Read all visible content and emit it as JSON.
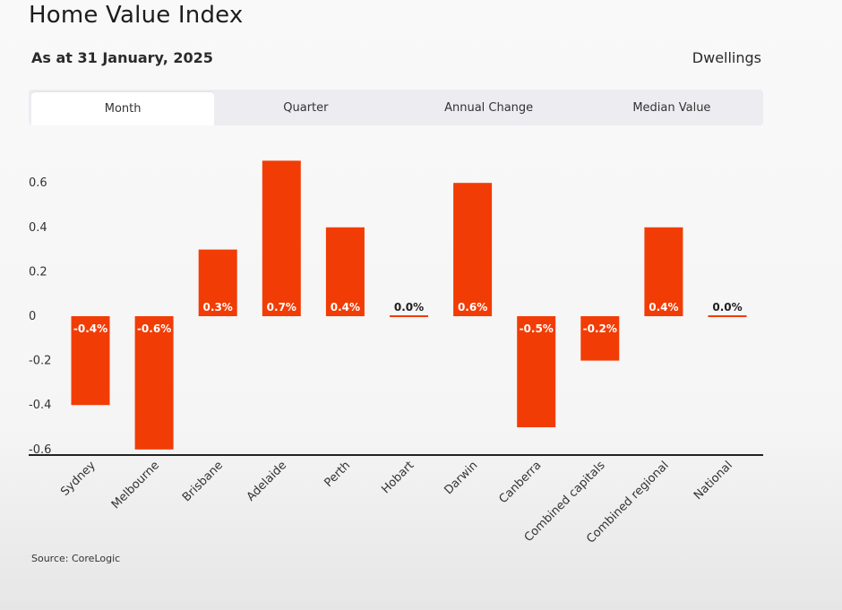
{
  "header": {
    "title": "Home Value Index",
    "subtitle": "As at 31 January, 2025",
    "segment": "Dwellings"
  },
  "tabs": [
    {
      "label": "Month",
      "active": true
    },
    {
      "label": "Quarter",
      "active": false
    },
    {
      "label": "Annual Change",
      "active": false
    },
    {
      "label": "Median Value",
      "active": false
    }
  ],
  "footer": {
    "source": "Source: CoreLogic"
  },
  "chart_data": {
    "type": "bar",
    "title": "",
    "xlabel": "",
    "ylabel": "",
    "categories": [
      "Sydney",
      "Melbourne",
      "Brisbane",
      "Adelaide",
      "Perth",
      "Hobart",
      "Darwin",
      "Canberra",
      "Combined capitals",
      "Combined regional",
      "National"
    ],
    "values": [
      -0.4,
      -0.6,
      0.3,
      0.7,
      0.4,
      0.0,
      0.6,
      -0.5,
      -0.2,
      0.4,
      0.0
    ],
    "data_labels": [
      "-0.4%",
      "-0.6%",
      "0.3%",
      "0.7%",
      "0.4%",
      "0.0%",
      "0.6%",
      "-0.5%",
      "-0.2%",
      "0.4%",
      "0.0%"
    ],
    "yticks": [
      0.6,
      0.4,
      0.2,
      0,
      -0.2,
      -0.4,
      -0.6
    ],
    "ytick_labels": [
      "0.6",
      "0.4",
      "0.2",
      "0",
      "-0.2",
      "-0.4",
      "-0.6"
    ],
    "ylim": [
      -0.62,
      0.7
    ],
    "grid": false,
    "legend": "none",
    "bar_color": "#f23c05"
  }
}
